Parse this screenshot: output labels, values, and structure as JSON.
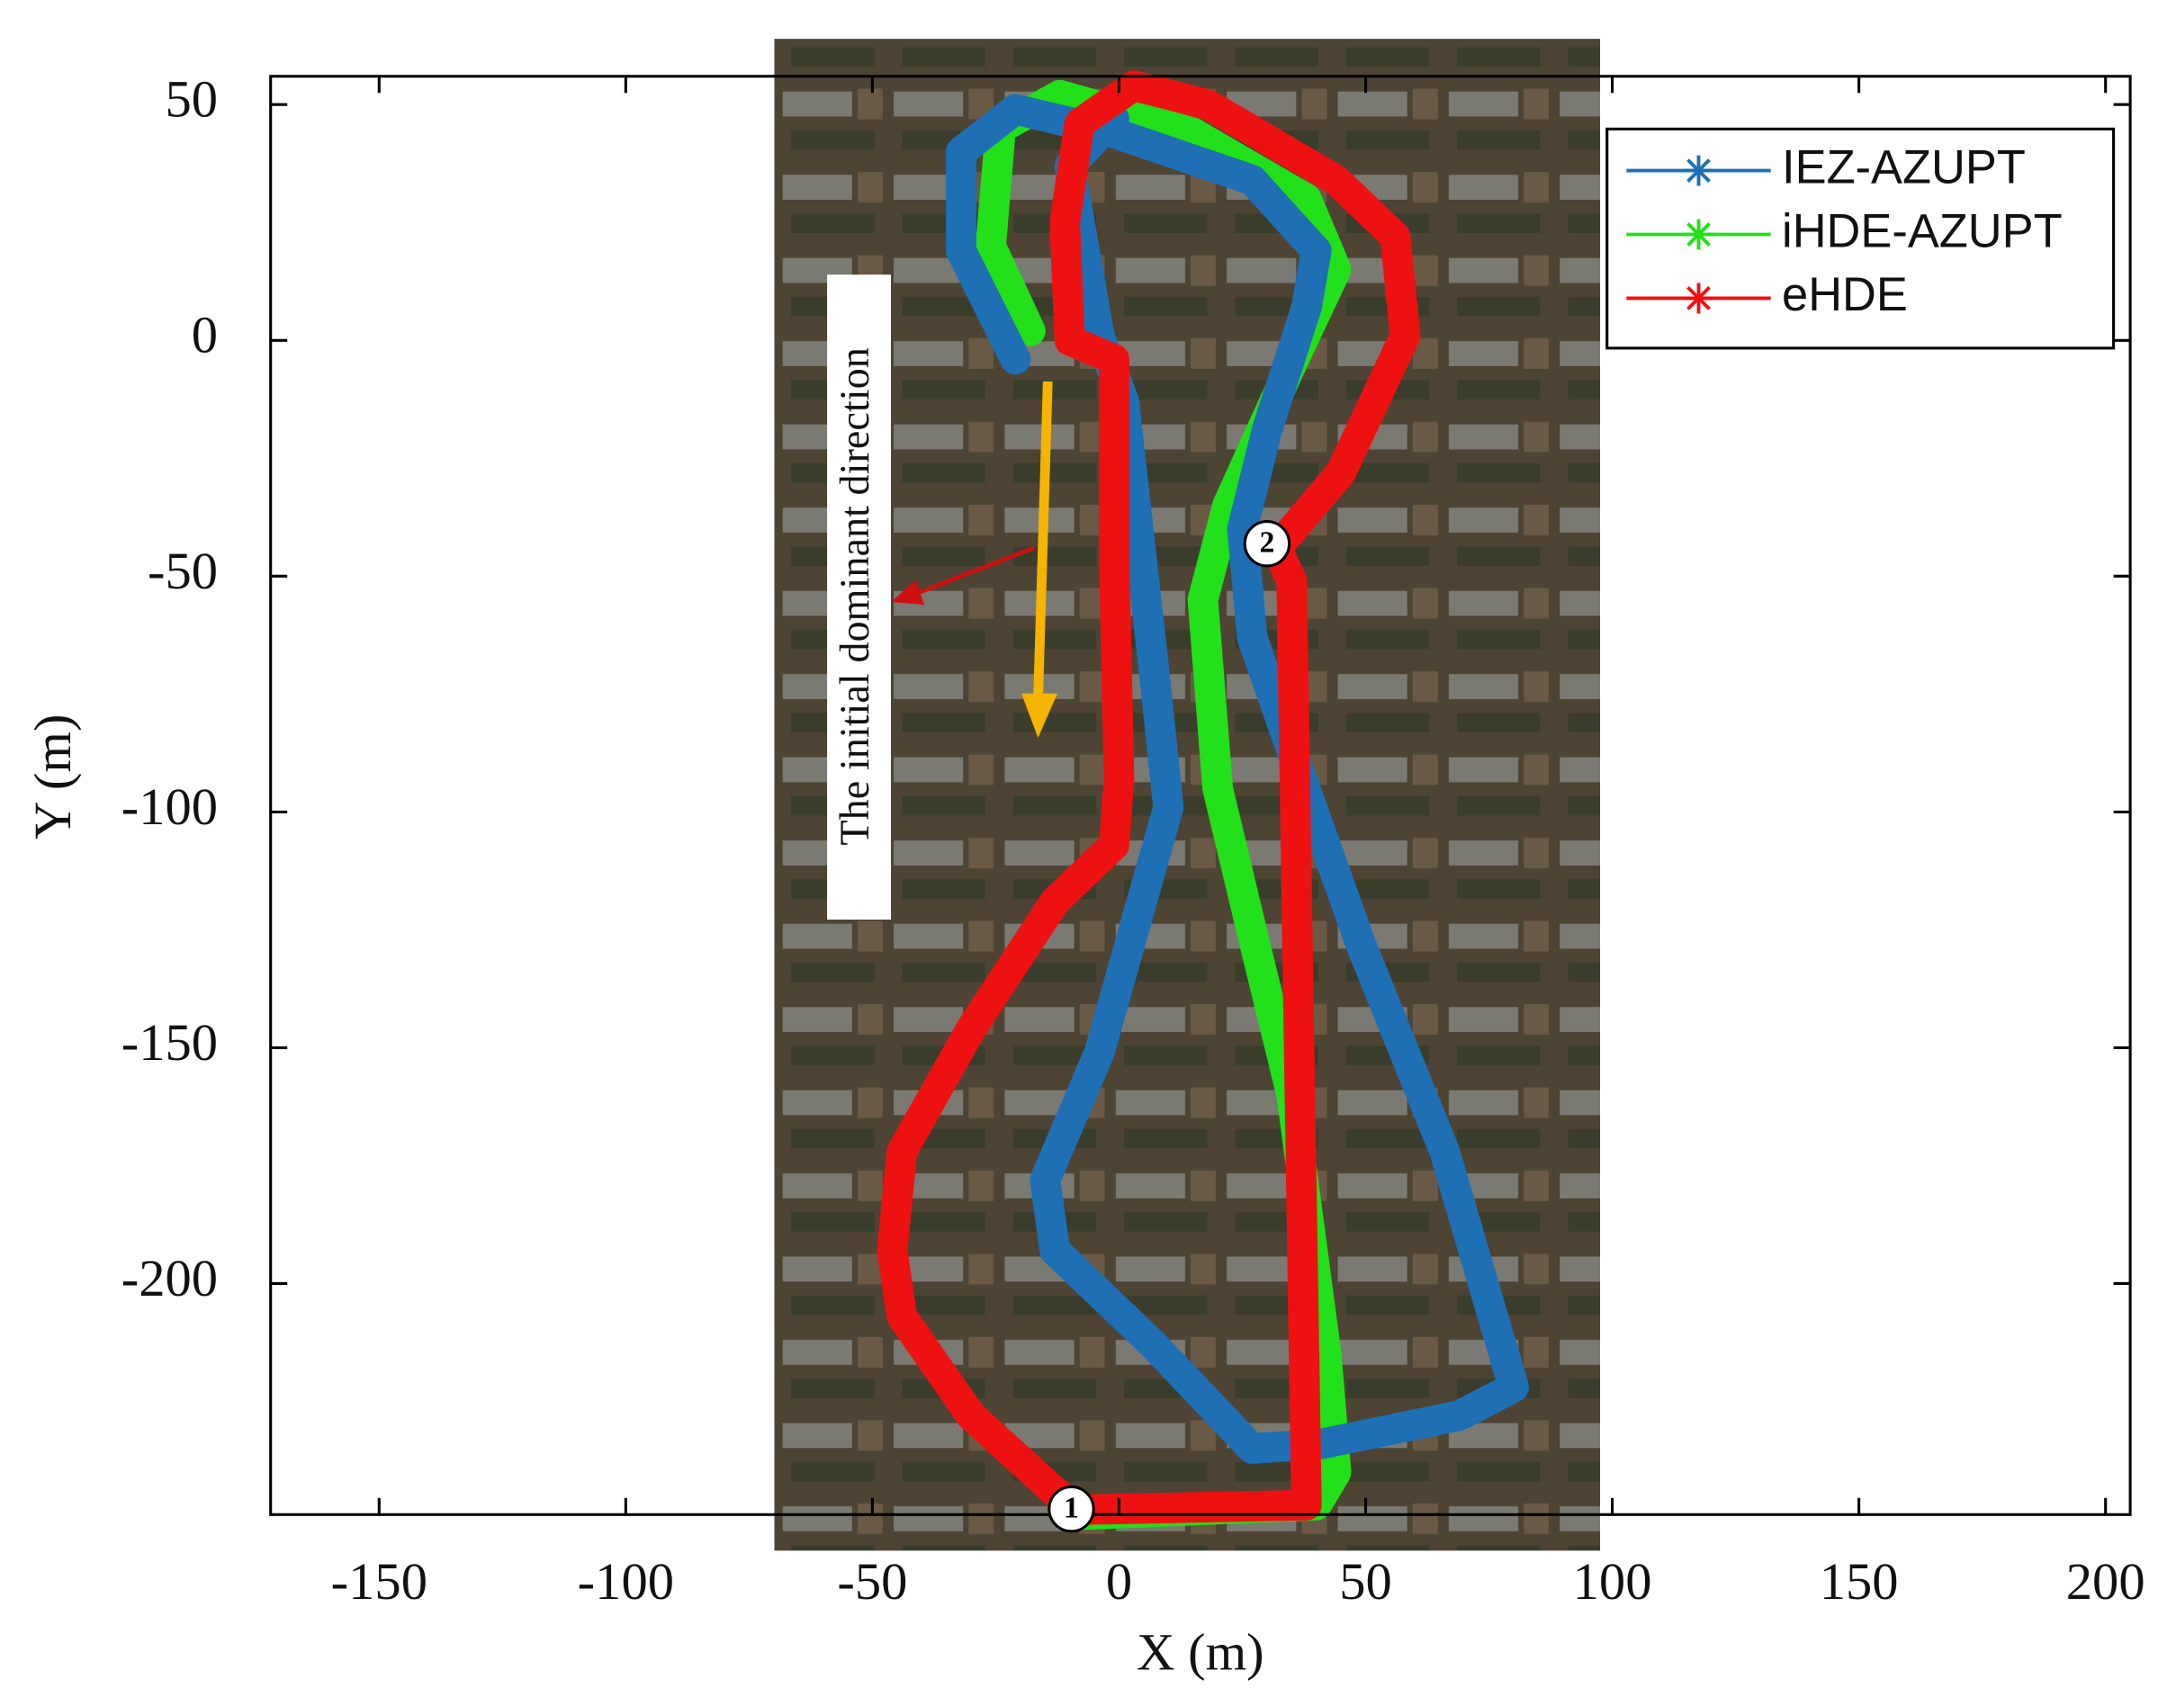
{
  "chart_data": {
    "type": "line",
    "x_label": "X (m)",
    "y_label": "Y (m)",
    "xlim": [
      -172,
      205
    ],
    "ylim": [
      -249,
      56
    ],
    "xticks": [
      -150,
      -100,
      -50,
      0,
      50,
      100,
      150,
      200
    ],
    "yticks": [
      50,
      0,
      -50,
      -100,
      -150,
      -200
    ],
    "legend": "upper right",
    "annotations": [
      "The initial dominant direction",
      "1",
      "2"
    ],
    "series": [
      {
        "name": "IEZ-AZUPT",
        "color": "#1f6fb4",
        "x": [
          -21,
          -32,
          -32,
          -21,
          -1,
          27,
          40,
          38,
          30,
          25,
          27,
          35,
          49,
          66,
          80,
          69,
          41,
          27,
          7,
          -13,
          -15,
          -4,
          10,
          7,
          1,
          -4,
          -10,
          -1
        ],
        "values": [
          -4,
          19,
          40,
          49,
          44,
          34,
          19,
          7,
          -19,
          -40,
          -63,
          -87,
          -128,
          -172,
          -222,
          -228,
          -234,
          -235,
          -213,
          -193,
          -178,
          -151,
          -99,
          -69,
          -13,
          1,
          37,
          47
        ]
      },
      {
        "name": "iHDE-AZUPT",
        "color": "#22e01a",
        "x": [
          -7,
          40,
          44,
          42,
          35,
          28,
          20,
          17,
          22,
          35,
          44,
          38,
          15,
          -12,
          -24,
          -26,
          -18
        ],
        "values": [
          -249,
          -247,
          -240,
          -215,
          -160,
          -130,
          -95,
          -55,
          -35,
          -5,
          15,
          30,
          44,
          52,
          45,
          20,
          2
        ]
      },
      {
        "name": "eHDE",
        "color": "#ee1111",
        "x": [
          -10,
          38,
          35,
          32,
          45,
          58,
          56,
          44,
          18,
          3,
          -8,
          -11,
          -10,
          -1,
          -1,
          0,
          -1,
          -13,
          -30,
          -44,
          -46,
          -44,
          -30,
          -10
        ],
        "values": [
          -248,
          -247,
          -51,
          -44,
          -28,
          1,
          22,
          34,
          50,
          54,
          46,
          25,
          0,
          -4,
          -46,
          -93,
          -107,
          -119,
          -146,
          -172,
          -193,
          -207,
          -228,
          -247
        ]
      }
    ]
  }
}
